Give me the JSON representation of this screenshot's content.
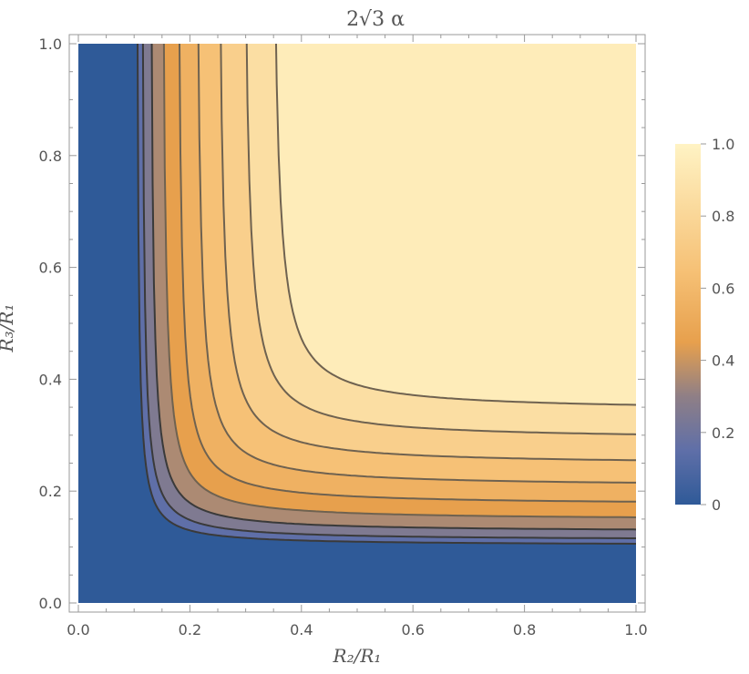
{
  "chart_data": {
    "type": "contour",
    "title": "2√3 α",
    "xlabel": "R₂/R₁",
    "ylabel": "R₃/R₁",
    "xlim": [
      0,
      1
    ],
    "ylim": [
      0,
      1
    ],
    "xticks": [
      "0.0",
      "0.2",
      "0.4",
      "0.6",
      "0.8",
      "1.0"
    ],
    "yticks": [
      "0.0",
      "0.2",
      "0.4",
      "0.6",
      "0.8",
      "1.0"
    ],
    "color_scale": {
      "range": [
        0,
        1
      ],
      "ticks": [
        "0",
        "0.2",
        "0.4",
        "0.6",
        "0.8",
        "1.0"
      ],
      "stops": [
        {
          "value": 0.0,
          "color": "#2f5a98"
        },
        {
          "value": 0.15,
          "color": "#5f6fa8"
        },
        {
          "value": 0.3,
          "color": "#8f7f86"
        },
        {
          "value": 0.45,
          "color": "#e7a04d"
        },
        {
          "value": 0.65,
          "color": "#f6c176"
        },
        {
          "value": 1.0,
          "color": "#fff3c4"
        }
      ]
    },
    "contour_levels": [
      0.1,
      0.2,
      0.3,
      0.4,
      0.5,
      0.6,
      0.7,
      0.8,
      0.9
    ],
    "legend_placement": "right",
    "grid": false
  }
}
